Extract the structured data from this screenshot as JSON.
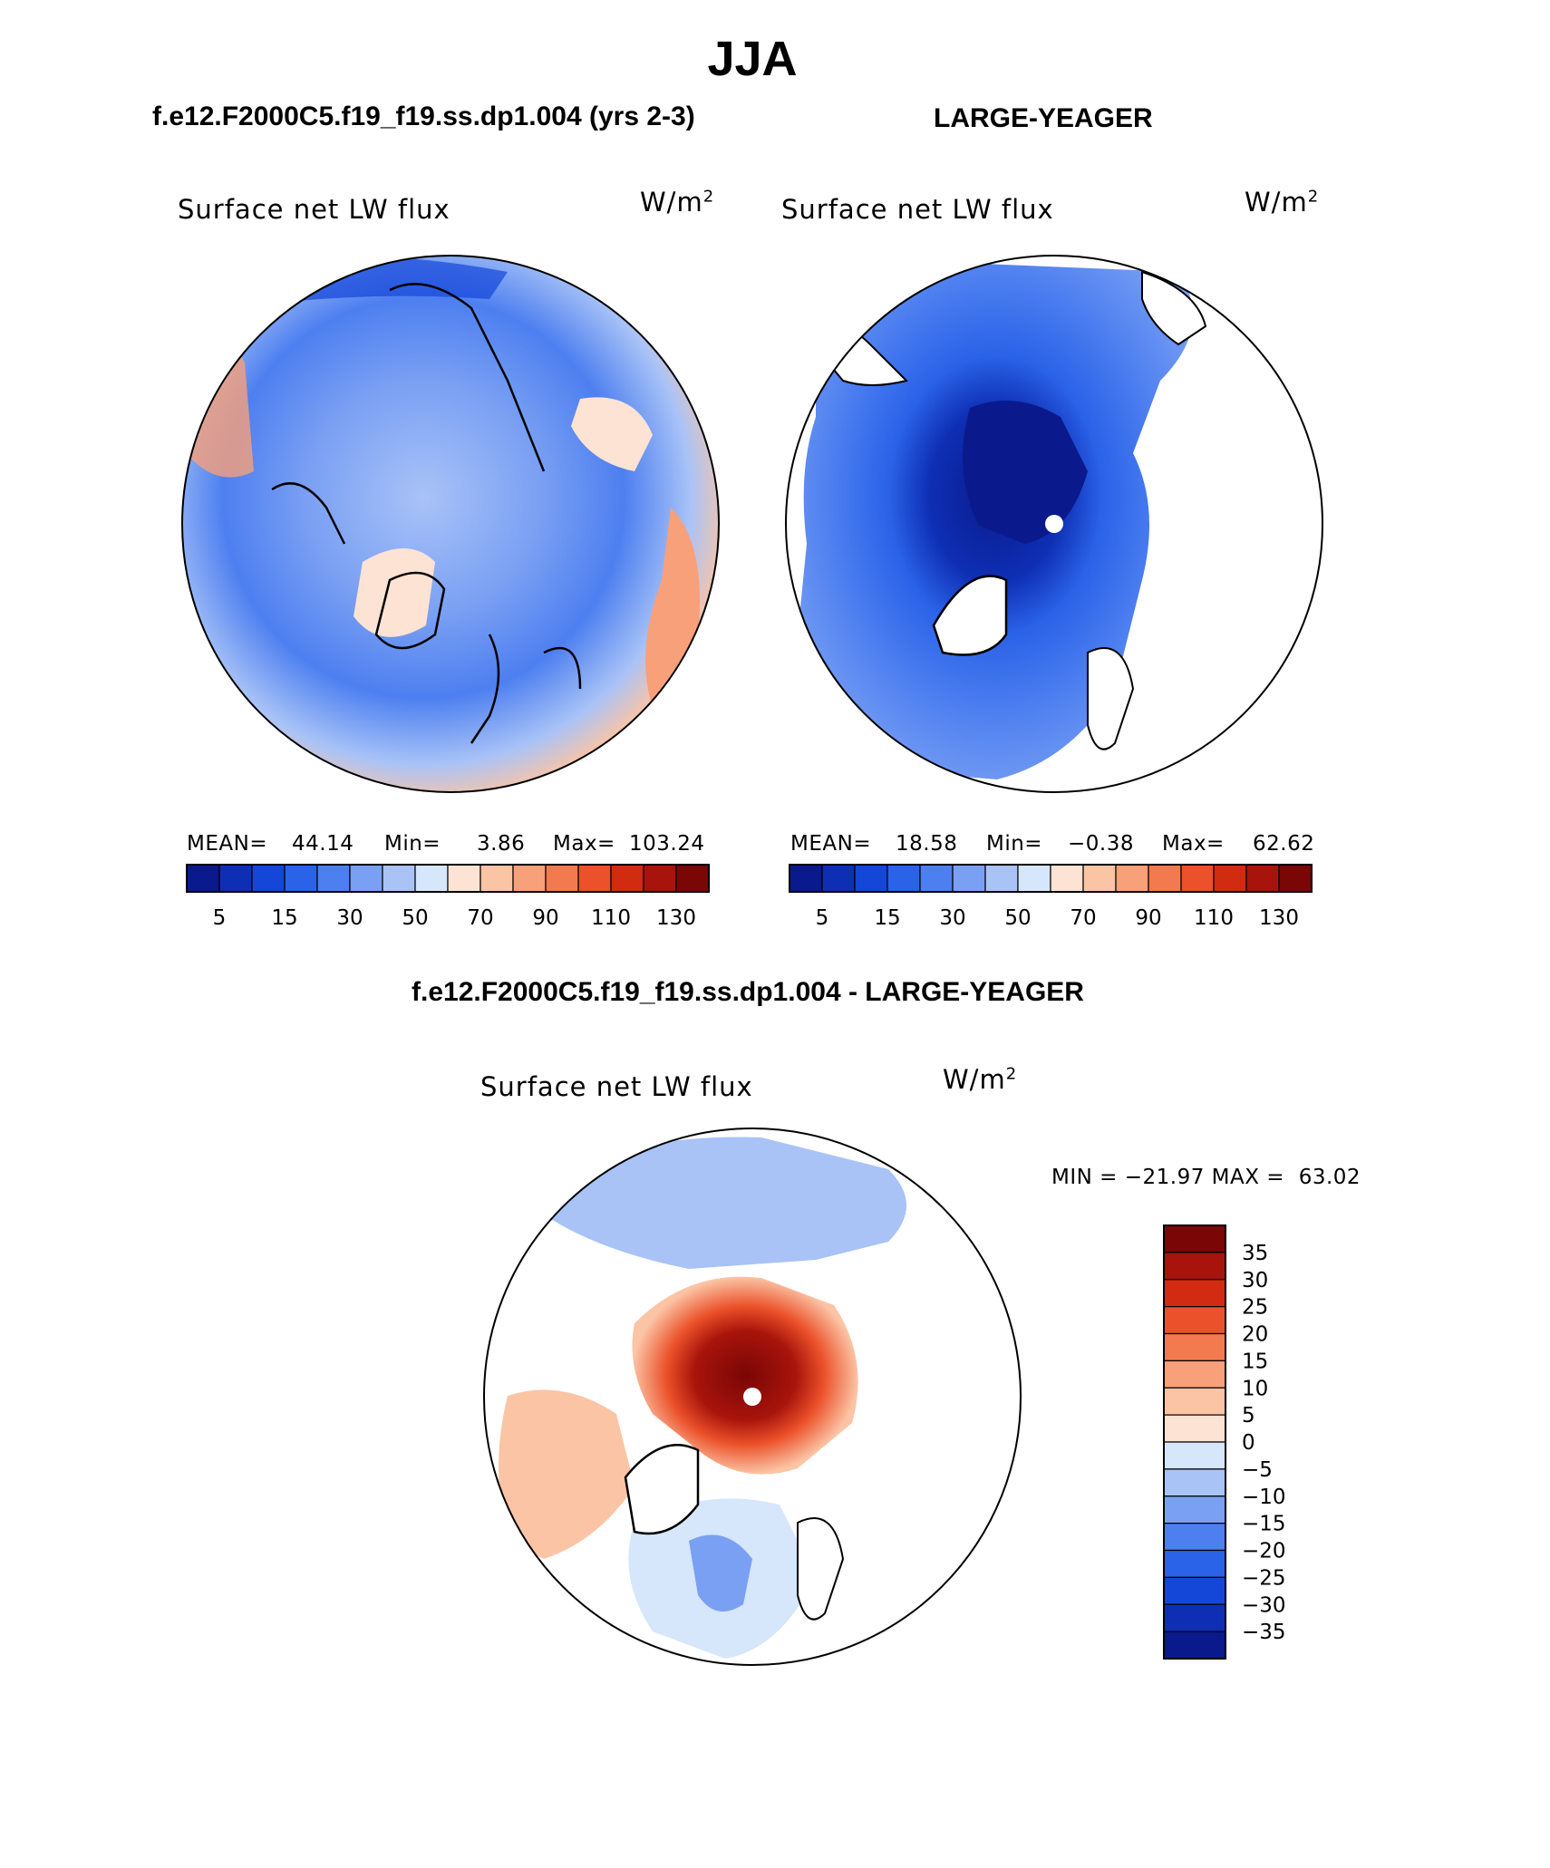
{
  "header": {
    "season": "JJA",
    "case1_title": "f.e12.F2000C5.f19_f19.ss.dp1.004 (yrs 2-3)",
    "case2_title": "LARGE-YEAGER",
    "diff_title": "f.e12.F2000C5.f19_f19.ss.dp1.004 - LARGE-YEAGER"
  },
  "panels": [
    {
      "variable": "Surface net LW flux",
      "units": "W/m",
      "units_sup": "2",
      "mean_label": "MEAN=",
      "mean": "44.14",
      "min_label": "Min=",
      "min": "3.86",
      "max_label": "Max=",
      "max": "103.24"
    },
    {
      "variable": "Surface net LW flux",
      "units": "W/m",
      "units_sup": "2",
      "mean_label": "MEAN=",
      "mean": "18.58",
      "min_label": "Min=",
      "min": "−0.38",
      "max_label": "Max=",
      "max": "62.62"
    },
    {
      "variable": "Surface net LW flux",
      "units": "W/m",
      "units_sup": "2",
      "range_text": "MIN = −21.97 MAX =  63.02"
    }
  ],
  "colorbar_horizontal": {
    "tick_labels": [
      "5",
      "15",
      "30",
      "50",
      "70",
      "90",
      "110",
      "130"
    ],
    "colors": [
      "#0a1a8c",
      "#0e2fb4",
      "#1446d8",
      "#2a62e8",
      "#4d7ff0",
      "#7aa0f3",
      "#a9c3f7",
      "#d6e6fb",
      "#fde3d3",
      "#fbc4a5",
      "#f8a07a",
      "#f37a4f",
      "#eb512a",
      "#d12b12",
      "#a8140b",
      "#7a0606"
    ]
  },
  "colorbar_vertical": {
    "tick_labels": [
      "35",
      "30",
      "25",
      "20",
      "15",
      "10",
      "5",
      "0",
      "−5",
      "−10",
      "−15",
      "−20",
      "−25",
      "−30",
      "−35"
    ],
    "colors": [
      "#7a0606",
      "#a8140b",
      "#d12b12",
      "#eb512a",
      "#f37a4f",
      "#f8a07a",
      "#fbc4a5",
      "#fde3d3",
      "#d6e6fb",
      "#a9c3f7",
      "#7aa0f3",
      "#4d7ff0",
      "#2a62e8",
      "#1446d8",
      "#0e2fb4",
      "#0a1a8c"
    ]
  },
  "map_colors": {
    "ocean_white": "#ffffff",
    "coast": "#000000",
    "pole_marker": "#ffffff"
  }
}
